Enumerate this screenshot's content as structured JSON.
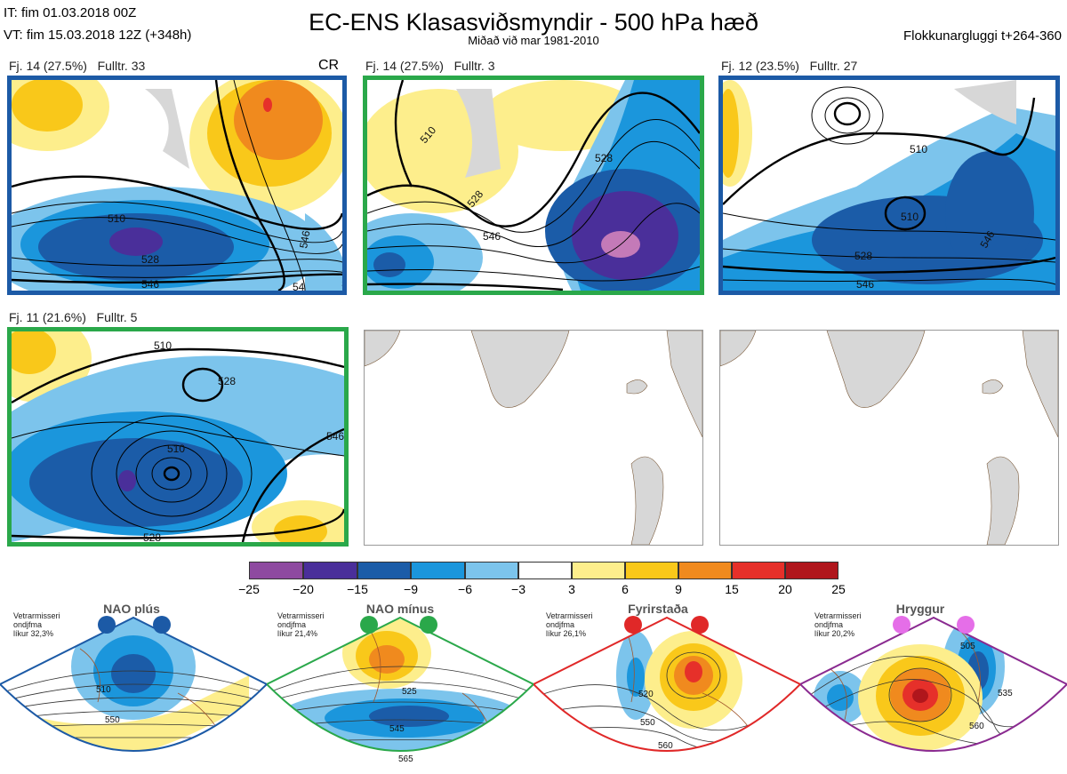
{
  "header": {
    "it": "IT: fim 01.03.2018 00Z",
    "vt": "VT: fim 15.03.2018 12Z  (+348h)",
    "title": "EC-ENS Klasasviðsmyndir - 500 hPa hæð",
    "subtitle": "Miðað við mar 1981-2010",
    "window": "Flokkunargluggi t+264-360"
  },
  "panels": [
    {
      "label": "Fj. 14 (27.5%)   Fulltr. 33",
      "border": "#1c5aa6",
      "badge": "CR",
      "contours": [
        "510",
        "528",
        "546",
        "546",
        "54"
      ]
    },
    {
      "label": "Fj. 14 (27.5%)   Fulltr. 3",
      "border": "#2aa84a",
      "contours": [
        "528",
        "528",
        "546",
        "510"
      ]
    },
    {
      "label": "Fj. 12 (23.5%)   Fulltr. 27",
      "border": "#1c5aa6",
      "contours": [
        "510",
        "510",
        "528",
        "546",
        "546"
      ]
    },
    {
      "label": "Fj. 11 (21.6%)   Fulltr. 5",
      "border": "#2aa84a",
      "contours": [
        "510",
        "528",
        "510",
        "546",
        "528"
      ]
    }
  ],
  "colorbar": {
    "colors": [
      "#8e4aa0",
      "#4a2f9a",
      "#1b5ca8",
      "#1b96dc",
      "#7cc4ec",
      "#ffffff",
      "#fdee8c",
      "#f9c81a",
      "#f08a1e",
      "#e6302a",
      "#b0161c"
    ],
    "ticks": [
      "−25",
      "−20",
      "−15",
      "−9",
      "−6",
      "−3",
      "3",
      "6",
      "9",
      "15",
      "20",
      "25"
    ]
  },
  "regimes": [
    {
      "name": "NAO plús",
      "note1": "Vetrarmisseri",
      "note2": "ondjfma",
      "note3": "líkur 32,3%",
      "color": "#1c5aa6",
      "contours": [
        "510",
        "550"
      ]
    },
    {
      "name": "NAO mínus",
      "note1": "Vetrarmisseri",
      "note2": "ondjfma",
      "note3": "líkur 21,4%",
      "color": "#2aa84a",
      "contours": [
        "525",
        "545",
        "565"
      ]
    },
    {
      "name": "Fyrirstaða",
      "note1": "Vetrarmisseri",
      "note2": "ondjfma",
      "note3": "líkur 26,1%",
      "color": "#e02828",
      "contours": [
        "520",
        "550",
        "560"
      ]
    },
    {
      "name": "Hryggur",
      "note1": "Vetrarmisseri",
      "note2": "ondjfma",
      "note3": "líkur 20,2%",
      "color": "#8a2a90",
      "dot": "#e56ee8",
      "contours": [
        "505",
        "535",
        "560"
      ]
    }
  ]
}
